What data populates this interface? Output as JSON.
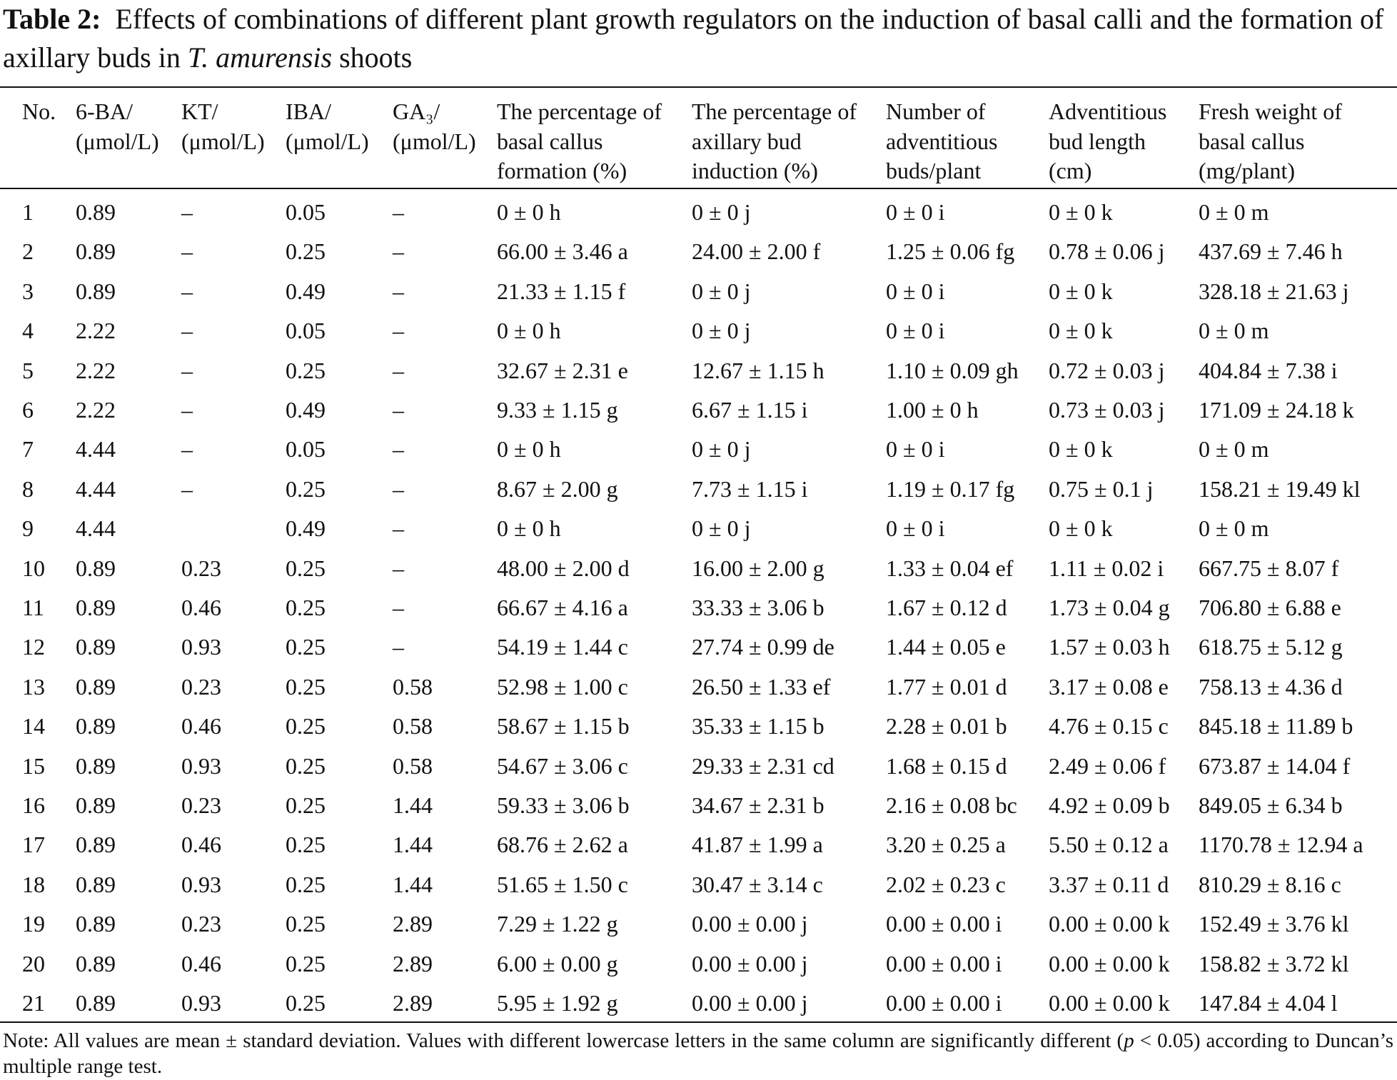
{
  "caption": {
    "label": "Table 2:",
    "text_before": "Effects of combinations of different plant growth regulators on the induction of basal calli and the formation of axillary buds in ",
    "species": "T. amurensis",
    "text_after": " shoots"
  },
  "table": {
    "header": [
      [
        "No."
      ],
      [
        "6-BA/",
        "(μmol/L)"
      ],
      [
        "KT/",
        "(μmol/L)"
      ],
      [
        "IBA/",
        "(μmol/L)"
      ],
      [
        "GA₃/",
        "(μmol/L)"
      ],
      [
        "The percentage of",
        "basal callus",
        "formation (%)"
      ],
      [
        "The percentage of",
        "axillary bud",
        "induction (%)"
      ],
      [
        "Number of",
        "adventitious",
        "buds/plant"
      ],
      [
        "Adventitious",
        "bud length",
        "(cm)"
      ],
      [
        "Fresh weight of",
        "basal callus",
        "(mg/plant)"
      ]
    ],
    "rows": [
      [
        "1",
        "0.89",
        "–",
        "0.05",
        "–",
        "0 ± 0 h",
        "0 ± 0 j",
        "0 ± 0 i",
        "0 ± 0 k",
        "0 ± 0 m"
      ],
      [
        "2",
        "0.89",
        "–",
        "0.25",
        "–",
        "66.00 ± 3.46 a",
        "24.00 ± 2.00 f",
        "1.25 ± 0.06 fg",
        "0.78 ± 0.06 j",
        "437.69 ± 7.46 h"
      ],
      [
        "3",
        "0.89",
        "–",
        "0.49",
        "–",
        "21.33 ± 1.15 f",
        "0 ± 0 j",
        "0 ± 0 i",
        "0 ± 0 k",
        "328.18 ± 21.63 j"
      ],
      [
        "4",
        "2.22",
        "–",
        "0.05",
        "–",
        "0 ± 0 h",
        "0 ± 0 j",
        "0 ± 0 i",
        "0 ± 0 k",
        "0 ± 0 m"
      ],
      [
        "5",
        "2.22",
        "–",
        "0.25",
        "–",
        "32.67 ± 2.31 e",
        "12.67 ± 1.15 h",
        "1.10 ± 0.09 gh",
        "0.72 ± 0.03 j",
        "404.84 ± 7.38 i"
      ],
      [
        "6",
        "2.22",
        "–",
        "0.49",
        "–",
        "9.33 ± 1.15 g",
        "6.67 ± 1.15 i",
        "1.00 ± 0 h",
        "0.73 ± 0.03 j",
        "171.09 ± 24.18 k"
      ],
      [
        "7",
        "4.44",
        "–",
        "0.05",
        "–",
        "0 ± 0 h",
        "0 ± 0 j",
        "0 ± 0 i",
        "0 ± 0 k",
        "0 ± 0 m"
      ],
      [
        "8",
        "4.44",
        "–",
        "0.25",
        "–",
        "8.67 ± 2.00 g",
        "7.73 ± 1.15 i",
        "1.19 ± 0.17 fg",
        "0.75 ± 0.1 j",
        "158.21 ± 19.49 kl"
      ],
      [
        "9",
        "4.44",
        null,
        "0.49",
        "–",
        "0 ± 0 h",
        "0 ± 0 j",
        "0 ± 0 i",
        "0 ± 0 k",
        "0 ± 0 m"
      ],
      [
        "10",
        "0.89",
        "0.23",
        "0.25",
        "–",
        "48.00 ± 2.00 d",
        "16.00 ± 2.00 g",
        "1.33 ± 0.04 ef",
        "1.11 ± 0.02 i",
        "667.75 ± 8.07 f"
      ],
      [
        "11",
        "0.89",
        "0.46",
        "0.25",
        "–",
        "66.67 ± 4.16 a",
        "33.33 ± 3.06 b",
        "1.67 ± 0.12 d",
        "1.73 ± 0.04 g",
        "706.80 ± 6.88 e"
      ],
      [
        "12",
        "0.89",
        "0.93",
        "0.25",
        "–",
        "54.19 ± 1.44 c",
        "27.74 ± 0.99 de",
        "1.44 ± 0.05 e",
        "1.57 ± 0.03 h",
        "618.75 ± 5.12 g"
      ],
      [
        "13",
        "0.89",
        "0.23",
        "0.25",
        "0.58",
        "52.98 ± 1.00 c",
        "26.50 ± 1.33 ef",
        "1.77 ± 0.01 d",
        "3.17 ± 0.08 e",
        "758.13 ± 4.36 d"
      ],
      [
        "14",
        "0.89",
        "0.46",
        "0.25",
        "0.58",
        "58.67 ± 1.15 b",
        "35.33 ± 1.15 b",
        "2.28 ± 0.01 b",
        "4.76 ± 0.15 c",
        "845.18 ± 11.89 b"
      ],
      [
        "15",
        "0.89",
        "0.93",
        "0.25",
        "0.58",
        "54.67 ± 3.06 c",
        "29.33 ± 2.31 cd",
        "1.68 ± 0.15 d",
        "2.49 ± 0.06 f",
        "673.87 ± 14.04 f"
      ],
      [
        "16",
        "0.89",
        "0.23",
        "0.25",
        "1.44",
        "59.33 ± 3.06 b",
        "34.67 ± 2.31 b",
        "2.16 ± 0.08 bc",
        "4.92 ± 0.09 b",
        "849.05 ± 6.34 b"
      ],
      [
        "17",
        "0.89",
        "0.46",
        "0.25",
        "1.44",
        "68.76 ± 2.62 a",
        "41.87 ± 1.99 a",
        "3.20 ± 0.25 a",
        "5.50 ± 0.12 a",
        "1170.78 ± 12.94 a"
      ],
      [
        "18",
        "0.89",
        "0.93",
        "0.25",
        "1.44",
        "51.65 ± 1.50 c",
        "30.47 ± 3.14 c",
        "2.02 ± 0.23 c",
        "3.37 ± 0.11 d",
        "810.29 ± 8.16 c"
      ],
      [
        "19",
        "0.89",
        "0.23",
        "0.25",
        "2.89",
        "7.29 ± 1.22 g",
        "0.00 ± 0.00 j",
        "0.00 ± 0.00 i",
        "0.00 ± 0.00 k",
        "152.49 ± 3.76 kl"
      ],
      [
        "20",
        "0.89",
        "0.46",
        "0.25",
        "2.89",
        "6.00 ± 0.00 g",
        "0.00 ± 0.00 j",
        "0.00 ± 0.00 i",
        "0.00 ± 0.00 k",
        "158.82 ± 3.72 kl"
      ],
      [
        "21",
        "0.89",
        "0.93",
        "0.25",
        "2.89",
        "5.95 ± 1.92 g",
        "0.00 ± 0.00 j",
        "0.00 ± 0.00 i",
        "0.00 ± 0.00 k",
        "147.84 ± 4.04 l"
      ]
    ]
  },
  "note": {
    "before": "Note: All values are mean ± standard deviation. Values with different lowercase letters in the same column are significantly different (",
    "p": "p",
    "after": " < 0.05) according to Duncan’s multiple range test."
  }
}
